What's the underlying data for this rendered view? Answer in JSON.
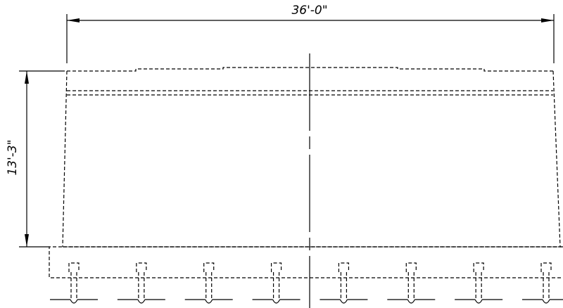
{
  "dimensions": {
    "width_label": "36'-0\"",
    "height_label": "13'-3\""
  },
  "pile_count": 8
}
